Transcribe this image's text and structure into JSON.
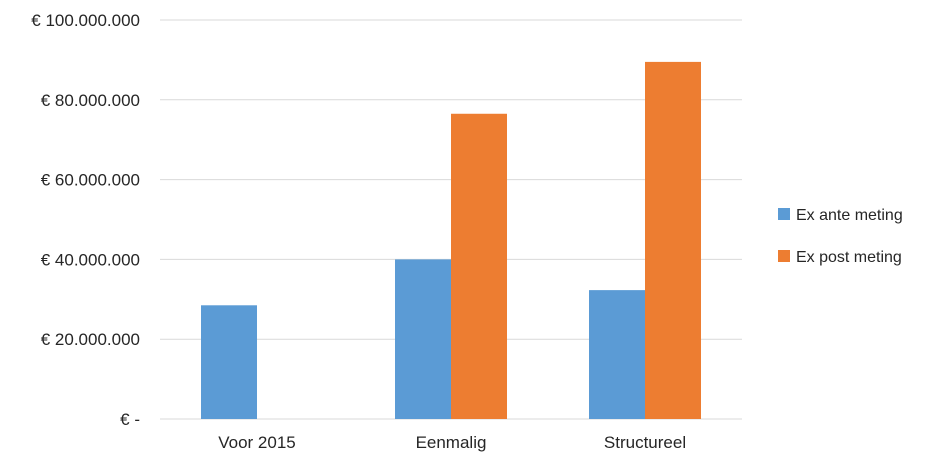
{
  "chart_data": {
    "type": "bar",
    "categories": [
      "Voor 2015",
      "Eenmalig",
      "Structureel"
    ],
    "series": [
      {
        "name": "Ex ante meting",
        "color": "#5b9bd5",
        "values": [
          28500000,
          40000000,
          32300000
        ]
      },
      {
        "name": "Ex post meting",
        "color": "#ed7d31",
        "values": [
          null,
          76500000,
          89500000
        ]
      }
    ],
    "ylim": [
      0,
      100000000
    ],
    "yticks": [
      0,
      20000000,
      40000000,
      60000000,
      80000000,
      100000000
    ],
    "ytick_labels": [
      "€ -",
      "€ 20.000.000",
      "€ 40.000.000",
      "€ 60.000.000",
      "€ 80.000.000",
      "€ 100.000.000"
    ],
    "title": "",
    "xlabel": "",
    "ylabel": "",
    "grid": true,
    "legend_position": "right"
  }
}
